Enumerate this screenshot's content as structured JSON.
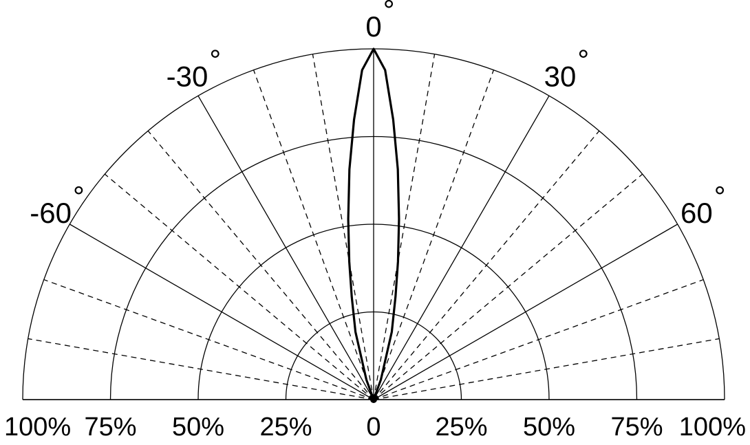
{
  "chart_data": {
    "type": "polar-radiation-pattern",
    "angle_range_deg": [
      -90,
      90
    ],
    "radius_range_percent": [
      0,
      100
    ],
    "radial_rings_percent": [
      25,
      50,
      75,
      100
    ],
    "major_spokes_deg": [
      -90,
      -60,
      -30,
      0,
      30,
      60,
      90
    ],
    "minor_spokes_deg": [
      -80,
      -70,
      -50,
      -40,
      -20,
      -10,
      10,
      20,
      40,
      50,
      70,
      80
    ],
    "angle_labels": [
      {
        "deg": -60,
        "text": "-60"
      },
      {
        "deg": -30,
        "text": "-30"
      },
      {
        "deg": 0,
        "text": "0"
      },
      {
        "deg": 30,
        "text": "30"
      },
      {
        "deg": 60,
        "text": "60"
      }
    ],
    "degree_symbol": "°",
    "radius_labels": [
      "100%",
      "75%",
      "50%",
      "25%",
      "0",
      "25%",
      "50%",
      "75%",
      "100%"
    ],
    "series": [
      {
        "angles_deg": [
          -25,
          -20,
          -15,
          -12,
          -10,
          -8,
          -6,
          -4,
          -2,
          0,
          2,
          4,
          6,
          8,
          10,
          12,
          15,
          20,
          25
        ],
        "relative_intensity_percent": [
          0,
          6,
          20,
          30,
          40,
          52,
          66,
          80,
          94,
          100,
          94,
          80,
          66,
          52,
          40,
          30,
          20,
          6,
          0
        ]
      }
    ]
  }
}
